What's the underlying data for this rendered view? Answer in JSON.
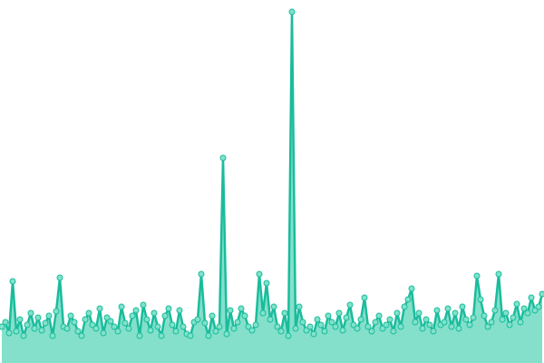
{
  "chart_data": {
    "type": "area",
    "color": "#1abc9c",
    "fill": "#84e0cb",
    "marker_fill": "#80e2ca",
    "values": [
      40,
      45,
      33,
      90,
      35,
      48,
      30,
      42,
      55,
      38,
      50,
      36,
      44,
      52,
      30,
      57,
      94,
      40,
      38,
      52,
      45,
      35,
      30,
      48,
      55,
      42,
      38,
      60,
      33,
      50,
      46,
      40,
      35,
      62,
      44,
      38,
      52,
      58,
      30,
      64,
      48,
      36,
      55,
      40,
      30,
      52,
      60,
      42,
      35,
      58,
      40,
      32,
      30,
      45,
      48,
      98,
      44,
      30,
      52,
      35,
      40,
      226,
      32,
      58,
      38,
      45,
      60,
      52,
      40,
      36,
      42,
      98,
      55,
      88,
      48,
      62,
      40,
      35,
      55,
      30,
      387,
      38,
      62,
      45,
      36,
      40,
      32,
      48,
      42,
      35,
      52,
      45,
      40,
      55,
      36,
      50,
      64,
      42,
      38,
      48,
      72,
      40,
      35,
      45,
      52,
      38,
      42,
      48,
      35,
      55,
      40,
      62,
      70,
      82,
      45,
      55,
      38,
      48,
      42,
      35,
      58,
      42,
      45,
      60,
      40,
      55,
      38,
      62,
      48,
      42,
      50,
      96,
      70,
      52,
      40,
      45,
      58,
      98,
      48,
      55,
      42,
      50,
      65,
      45,
      60,
      55,
      72,
      58,
      62,
      76
    ]
  }
}
